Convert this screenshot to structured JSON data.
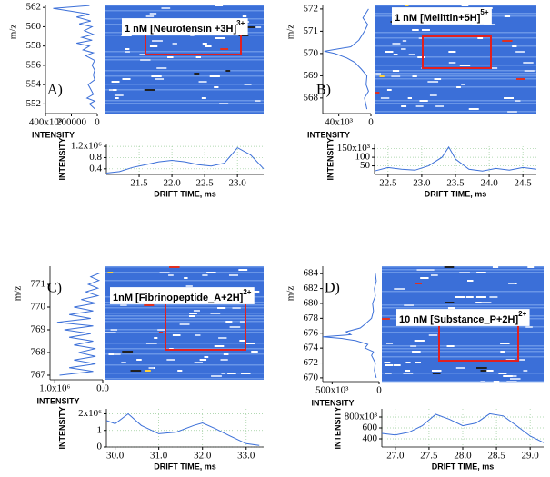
{
  "chart_data": [
    {
      "panel_label": "A)",
      "heatmap": {
        "type": "heatmap",
        "title": "1 nM [Neurotensin +3H]",
        "title_superscript": "3+"
      },
      "spectrum": {
        "type": "line",
        "orientation": "horizontal",
        "color": "#3b6fd8",
        "ylabel": "m/z",
        "xlabel": "INTENSITY",
        "x": [
          551.5,
          552,
          552.3,
          552.6,
          553,
          553.5,
          554,
          554.5,
          555,
          555.5,
          556,
          556.5,
          557,
          557.3,
          557.6,
          558,
          558.3,
          558.6,
          558.9,
          559.2,
          559.6,
          560,
          560.3,
          560.6,
          561,
          561.3,
          561.6,
          561.9,
          562.2
        ],
        "values": [
          20000,
          60000,
          20000,
          80000,
          30000,
          50000,
          70000,
          20000,
          30000,
          20000,
          40000,
          20000,
          90000,
          30000,
          110000,
          60000,
          160000,
          40000,
          120000,
          30000,
          100000,
          40000,
          140000,
          50000,
          160000,
          60000,
          200000,
          340000,
          60000
        ],
        "ylim": [
          551,
          562.3
        ],
        "yticks": [
          552,
          554,
          556,
          558,
          560,
          562
        ],
        "xlim": [
          400000,
          0
        ],
        "xticks": [
          {
            "value": 400000,
            "label": "400x10³"
          },
          200000,
          0
        ]
      },
      "drift": {
        "type": "line",
        "color": "#3b6fd8",
        "ylabel": "INTENSITY",
        "xlabel": "DRIFT TIME, ms",
        "grid": true,
        "x": [
          21,
          21.2,
          21.4,
          21.6,
          21.8,
          22.0,
          22.2,
          22.4,
          22.6,
          22.8,
          23.0,
          23.2,
          23.4
        ],
        "values": [
          0.25,
          0.3,
          0.45,
          0.55,
          0.65,
          0.7,
          0.65,
          0.55,
          0.5,
          0.6,
          1.15,
          0.9,
          0.4
        ],
        "xlim": [
          21,
          23.4
        ],
        "xticks": [
          21.5,
          {
            "value": 22,
            "label": "22.0"
          },
          22.5,
          {
            "value": 23,
            "label": "23.0"
          }
        ],
        "ylim": [
          0.2,
          1.3
        ],
        "yticks": [
          0.4,
          0.8,
          {
            "value": 1.2,
            "label": "1.2x10⁶"
          }
        ]
      }
    },
    {
      "panel_label": "B)",
      "heatmap": {
        "type": "heatmap",
        "title": "1 nM [Melittin+5H]",
        "title_superscript": "5+"
      },
      "spectrum": {
        "type": "line",
        "orientation": "horizontal",
        "color": "#3b6fd8",
        "ylabel": "m/z",
        "xlabel": "INTENSITY",
        "x": [
          567.5,
          568,
          568.3,
          568.6,
          569,
          569.3,
          569.6,
          569.8,
          570,
          570.1,
          570.3,
          570.6,
          571,
          571.3,
          571.6,
          572
        ],
        "values": [
          5000,
          8000,
          3000,
          6000,
          5000,
          12000,
          20000,
          30000,
          45000,
          58000,
          25000,
          15000,
          8000,
          4000,
          10000,
          3000
        ],
        "ylim": [
          567.3,
          572.2
        ],
        "yticks": [
          568,
          569,
          570,
          571,
          572
        ],
        "xlim": [
          60000,
          0
        ],
        "xticks": [
          {
            "value": 40000,
            "label": "40x10³"
          },
          0
        ]
      },
      "drift": {
        "type": "line",
        "color": "#3b6fd8",
        "ylabel": "INTENSITY",
        "xlabel": "DRIFT TIME, ms",
        "grid": true,
        "x": [
          22.3,
          22.5,
          22.7,
          22.9,
          23.1,
          23.3,
          23.4,
          23.5,
          23.7,
          23.9,
          24.1,
          24.3,
          24.5,
          24.7
        ],
        "values": [
          20000,
          40000,
          30000,
          25000,
          50000,
          100000,
          160000,
          90000,
          30000,
          20000,
          35000,
          25000,
          40000,
          30000
        ],
        "xlim": [
          22.3,
          24.7
        ],
        "xticks": [
          22.5,
          {
            "value": 23,
            "label": "23.0"
          },
          23.5,
          {
            "value": 24,
            "label": "24.0"
          },
          24.5
        ],
        "ylim": [
          0,
          180000
        ],
        "yticks": [
          {
            "value": 50000,
            "label": "50"
          },
          {
            "value": 100000,
            "label": "100"
          },
          {
            "value": 150000,
            "label": "150x10³"
          }
        ]
      }
    },
    {
      "panel_label": "C)",
      "heatmap": {
        "type": "heatmap",
        "title": "1nM [Fibrinopeptide_A+2H]",
        "title_superscript": "2+"
      },
      "spectrum": {
        "type": "line",
        "orientation": "horizontal",
        "color": "#3b6fd8",
        "ylabel": "m/z",
        "xlabel": "INTENSITY",
        "x": [
          767,
          767.17,
          767.33,
          767.5,
          767.67,
          767.83,
          768,
          768.17,
          768.33,
          768.5,
          768.67,
          768.83,
          769,
          769.17,
          769.33,
          769.5,
          769.67,
          769.83,
          770,
          770.17,
          770.33,
          770.5,
          770.67,
          770.83,
          771,
          771.17,
          771.33,
          771.5
        ],
        "values": [
          900000,
          200000,
          700000,
          150000,
          600000,
          150000,
          500000,
          150000,
          600000,
          200000,
          700000,
          250000,
          800000,
          200000,
          950000,
          250000,
          700000,
          200000,
          600000,
          150000,
          450000,
          100000,
          350000,
          100000,
          300000,
          80000,
          250000,
          60000
        ],
        "ylim": [
          766.8,
          771.8
        ],
        "yticks": [
          767,
          768,
          769,
          770,
          771
        ],
        "xlim": [
          1100000,
          0
        ],
        "xticks": [
          {
            "value": 1000000,
            "label": "1.0x10⁶"
          },
          {
            "value": 0,
            "label": "0.0"
          }
        ]
      },
      "drift": {
        "type": "line",
        "color": "#3b6fd8",
        "ylabel": "INTENSITY",
        "xlabel": "DRIFT TIME, ms",
        "grid": true,
        "x": [
          29.8,
          30.0,
          30.3,
          30.6,
          31.0,
          31.4,
          31.8,
          32.0,
          32.3,
          32.6,
          33.0,
          33.3
        ],
        "values": [
          1.6,
          1.4,
          2.0,
          1.3,
          0.8,
          0.9,
          1.3,
          1.45,
          1.1,
          0.7,
          0.2,
          0.1
        ],
        "xlim": [
          29.8,
          33.4
        ],
        "xticks": [
          {
            "value": 30,
            "label": "30.0"
          },
          {
            "value": 31,
            "label": "31.0"
          },
          {
            "value": 32,
            "label": "32.0"
          },
          {
            "value": 33,
            "label": "33.0"
          }
        ],
        "ylim": [
          0,
          2.3
        ],
        "yticks": [
          0,
          1,
          {
            "value": 2,
            "label": "2x10⁶"
          }
        ]
      }
    },
    {
      "panel_label": "D)",
      "heatmap": {
        "type": "heatmap",
        "title": "10 nM [Substance_P+2H]",
        "title_superscript": "2+"
      },
      "spectrum": {
        "type": "line",
        "orientation": "horizontal",
        "color": "#3b6fd8",
        "ylabel": "m/z",
        "xlabel": "INTENSITY",
        "x": [
          670,
          671,
          672,
          673,
          673.5,
          674,
          674.5,
          675,
          675.3,
          675.5,
          675.8,
          676.2,
          676.7,
          677.2,
          678,
          679,
          680,
          681,
          682,
          683,
          684
        ],
        "values": [
          30000,
          50000,
          40000,
          80000,
          60000,
          150000,
          120000,
          250000,
          400000,
          600000,
          300000,
          350000,
          200000,
          150000,
          80000,
          60000,
          70000,
          40000,
          50000,
          30000,
          40000
        ],
        "ylim": [
          669.5,
          685
        ],
        "yticks": [
          670,
          672,
          674,
          676,
          678,
          680,
          682,
          684
        ],
        "xlim": [
          600000,
          0
        ],
        "xticks": [
          {
            "value": 500000,
            "label": "500x10³"
          },
          0
        ]
      },
      "drift": {
        "type": "line",
        "color": "#3b6fd8",
        "ylabel": "INTENSITY",
        "xlabel": "DRIFT TIME, ms",
        "grid": true,
        "x": [
          26.8,
          27,
          27.2,
          27.4,
          27.6,
          27.8,
          28,
          28.2,
          28.4,
          28.6,
          28.8,
          29,
          29.2
        ],
        "values": [
          500,
          470,
          520,
          640,
          850,
          760,
          640,
          690,
          860,
          820,
          640,
          450,
          330
        ],
        "xlim": [
          26.8,
          29.2
        ],
        "xticks": [
          {
            "value": 27,
            "label": "27.0"
          },
          27.5,
          {
            "value": 28,
            "label": "28.0"
          },
          28.5,
          {
            "value": 29,
            "label": "29.0"
          }
        ],
        "ylim": [
          250,
          950
        ],
        "yticks": [
          400,
          600,
          {
            "value": 800,
            "label": "800x10³"
          }
        ]
      }
    }
  ]
}
